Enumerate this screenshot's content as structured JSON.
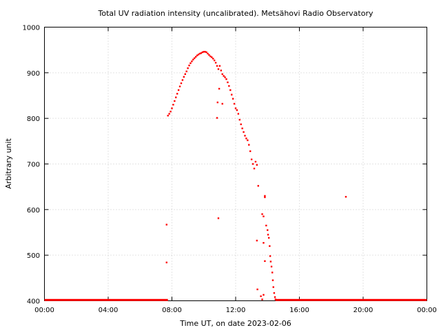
{
  "chart_data": {
    "type": "scatter",
    "title": "Total UV radiation intensity (uncalibrated). Metsähovi Radio Observatory",
    "xlabel": "Time UT, on date 2023-02-06",
    "ylabel": "Arbitrary unit",
    "xlim": [
      "00:00",
      "24:00"
    ],
    "ylim": [
      400,
      1000
    ],
    "grid": true,
    "legend": "none",
    "x_ticks": [
      "00:00",
      "04:00",
      "08:00",
      "12:00",
      "16:00",
      "20:00",
      "00:00"
    ],
    "y_ticks": [
      "400",
      "500",
      "600",
      "700",
      "800",
      "900",
      "1000"
    ],
    "series": [
      {
        "color": "#ff0000",
        "points": [
          [
            "07:45",
            806
          ],
          [
            "07:50",
            810
          ],
          [
            "07:55",
            815
          ],
          [
            "08:00",
            822
          ],
          [
            "08:05",
            830
          ],
          [
            "08:10",
            838
          ],
          [
            "08:15",
            846
          ],
          [
            "08:20",
            854
          ],
          [
            "08:25",
            862
          ],
          [
            "08:30",
            870
          ],
          [
            "08:35",
            877
          ],
          [
            "08:40",
            884
          ],
          [
            "08:45",
            891
          ],
          [
            "08:50",
            897
          ],
          [
            "08:55",
            903
          ],
          [
            "09:00",
            910
          ],
          [
            "09:05",
            916
          ],
          [
            "09:10",
            921
          ],
          [
            "09:15",
            925
          ],
          [
            "09:20",
            929
          ],
          [
            "09:25",
            932
          ],
          [
            "09:30",
            935
          ],
          [
            "09:35",
            938
          ],
          [
            "09:40",
            940
          ],
          [
            "09:45",
            942
          ],
          [
            "09:50",
            943
          ],
          [
            "09:55",
            945
          ],
          [
            "10:00",
            946
          ],
          [
            "10:05",
            946
          ],
          [
            "10:10",
            945
          ],
          [
            "10:15",
            942
          ],
          [
            "10:20",
            939
          ],
          [
            "10:25",
            936
          ],
          [
            "10:30",
            934
          ],
          [
            "10:35",
            931
          ],
          [
            "10:40",
            927
          ],
          [
            "10:45",
            922
          ],
          [
            "10:50",
            915
          ],
          [
            "10:55",
            908
          ],
          [
            "11:00",
            915
          ],
          [
            "11:05",
            905
          ],
          [
            "11:10",
            897
          ],
          [
            "11:15",
            893
          ],
          [
            "11:20",
            890
          ],
          [
            "11:25",
            886
          ],
          [
            "11:30",
            879
          ],
          [
            "11:35",
            871
          ],
          [
            "11:40",
            862
          ],
          [
            "11:45",
            852
          ],
          [
            "11:50",
            843
          ],
          [
            "11:55",
            832
          ],
          [
            "12:00",
            822
          ],
          [
            "12:05",
            818
          ],
          [
            "12:10",
            810
          ],
          [
            "12:15",
            797
          ],
          [
            "12:20",
            787
          ],
          [
            "12:25",
            778
          ],
          [
            "12:30",
            770
          ],
          [
            "12:35",
            762
          ],
          [
            "12:40",
            756
          ],
          [
            "12:45",
            752
          ],
          [
            "12:50",
            742
          ],
          [
            "12:55",
            728
          ],
          [
            "13:00",
            710
          ],
          [
            "13:05",
            700
          ],
          [
            "13:10",
            690
          ],
          [
            "13:15",
            705
          ],
          [
            "13:20",
            698
          ],
          [
            "13:25",
            652
          ],
          [
            "07:40",
            567
          ],
          [
            "07:40",
            484
          ],
          [
            "10:50",
            801
          ],
          [
            "10:52",
            835
          ],
          [
            "10:55",
            581
          ],
          [
            "10:58",
            865
          ],
          [
            "11:10",
            832
          ],
          [
            "13:20",
            532
          ],
          [
            "13:22",
            425
          ],
          [
            "13:35",
            410
          ],
          [
            "13:40",
            403
          ],
          [
            "13:45",
            413
          ],
          [
            "13:50",
            630
          ],
          [
            "13:50",
            627
          ],
          [
            "13:40",
            590
          ],
          [
            "13:45",
            585
          ],
          [
            "13:45",
            527
          ],
          [
            "13:50",
            487
          ],
          [
            "13:55",
            565
          ],
          [
            "14:00",
            555
          ],
          [
            "14:02",
            545
          ],
          [
            "14:05",
            538
          ],
          [
            "14:08",
            520
          ],
          [
            "14:10",
            498
          ],
          [
            "14:12",
            486
          ],
          [
            "14:15",
            475
          ],
          [
            "14:18",
            462
          ],
          [
            "14:20",
            445
          ],
          [
            "14:22",
            430
          ],
          [
            "14:25",
            417
          ],
          [
            "14:28",
            408
          ],
          [
            "14:30",
            403
          ],
          [
            "18:55",
            628
          ]
        ],
        "baseline": [
          {
            "from": "00:00",
            "to": "07:45",
            "value": 401
          },
          {
            "from": "14:30",
            "to": "24:00",
            "value": 401
          }
        ]
      }
    ]
  }
}
